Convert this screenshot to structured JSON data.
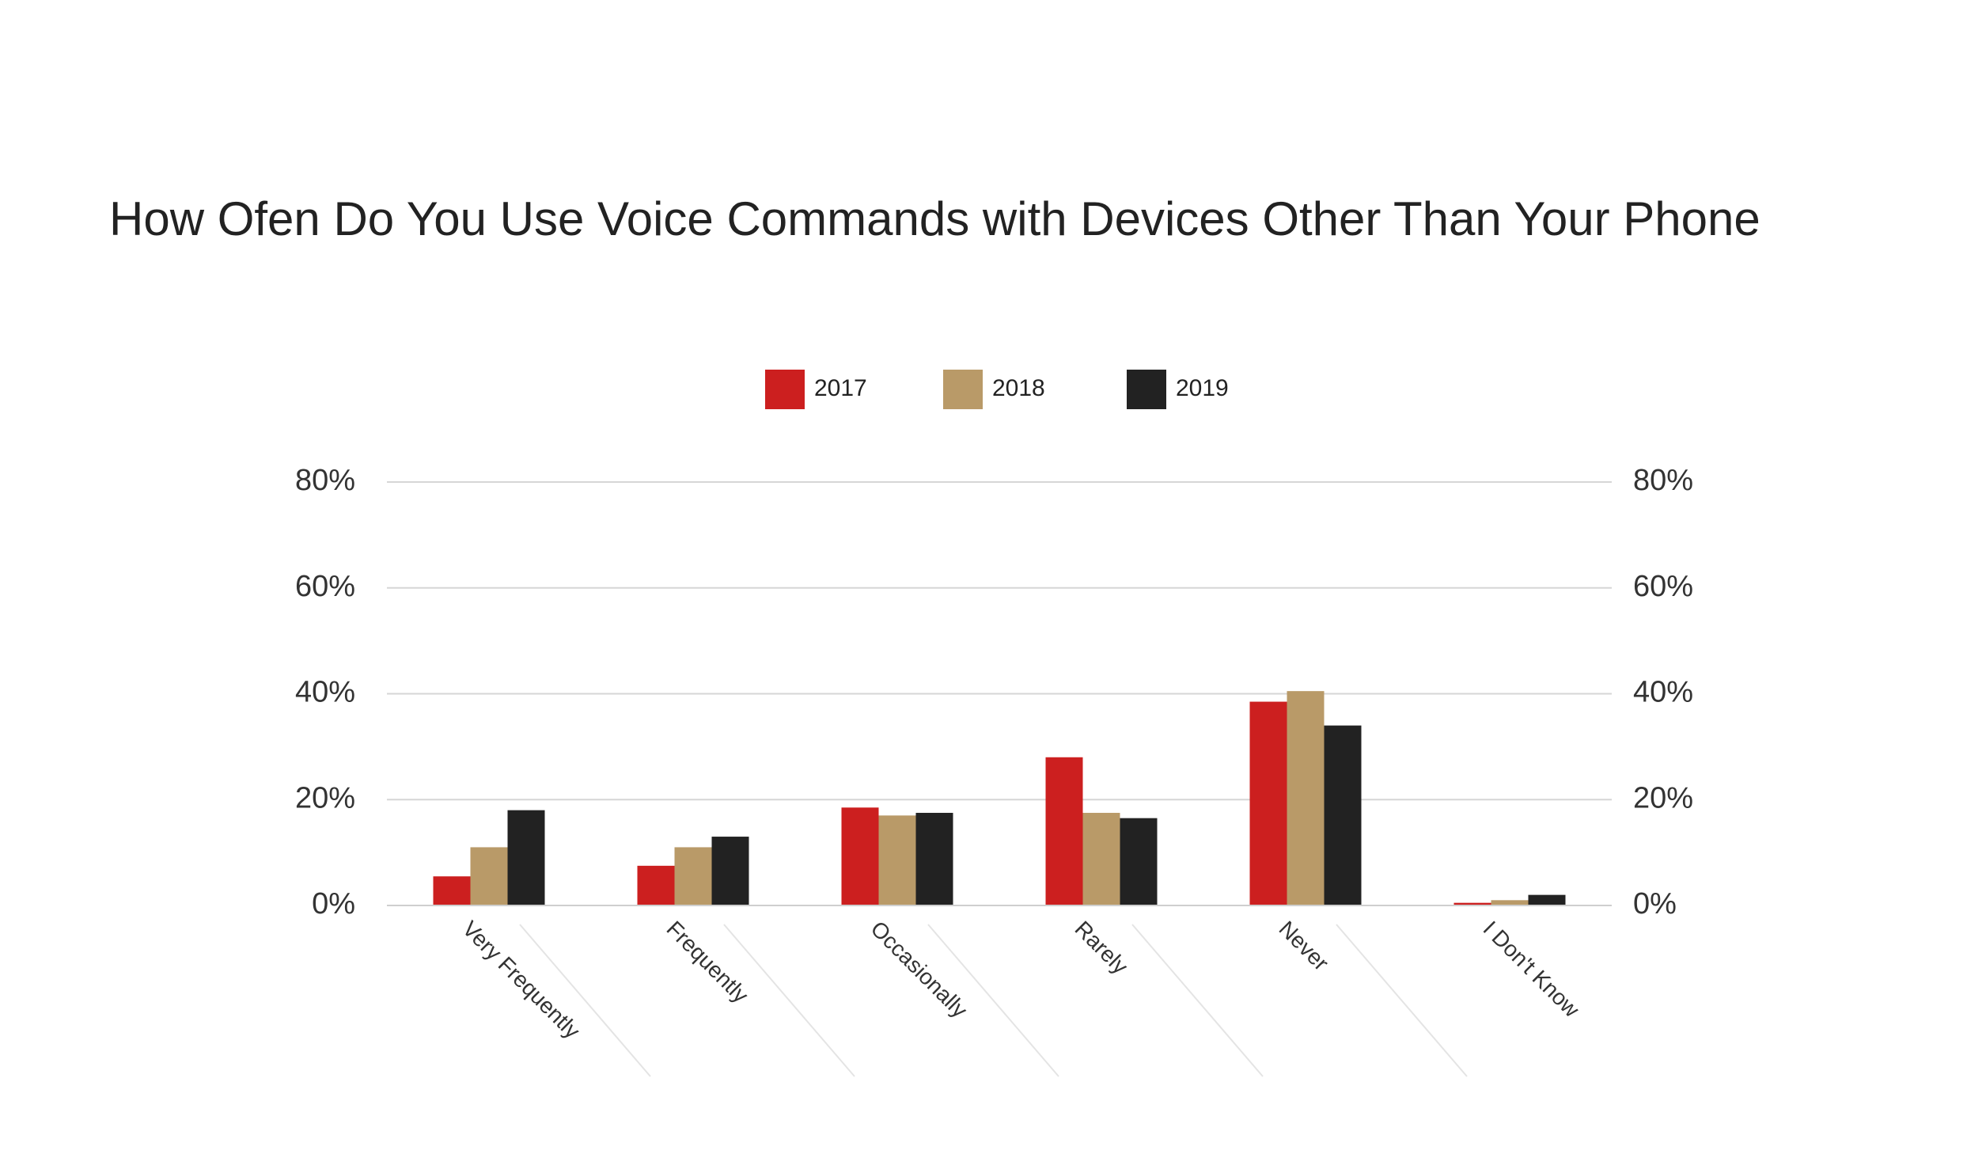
{
  "chart_data": {
    "type": "bar",
    "title": "How Ofen Do You Use Voice Commands with Devices Other Than Your Phone",
    "categories": [
      "Very Frequently",
      "Frequently",
      "Occasionally",
      "Rarely",
      "Never",
      "I Don't Know"
    ],
    "series": [
      {
        "name": "2017",
        "color": "#cc1f1f",
        "values": [
          5.5,
          7.5,
          18.5,
          28,
          38.5,
          0.5
        ]
      },
      {
        "name": "2018",
        "color": "#b99a68",
        "values": [
          11,
          11,
          17,
          17.5,
          40.5,
          1
        ]
      },
      {
        "name": "2019",
        "color": "#222222",
        "values": [
          18,
          13,
          17.5,
          16.5,
          34,
          2
        ]
      }
    ],
    "ylim": [
      0,
      80
    ],
    "yticks": [
      {
        "value": 0,
        "label": "0%"
      },
      {
        "value": 20,
        "label": "20%"
      },
      {
        "value": 40,
        "label": "40%"
      },
      {
        "value": 60,
        "label": "60%"
      },
      {
        "value": 80,
        "label": "80%"
      }
    ],
    "y2lim": [
      0,
      80
    ],
    "y2ticks": [
      {
        "value": 0,
        "label": "0%"
      },
      {
        "value": 20,
        "label": "20%"
      },
      {
        "value": 40,
        "label": "40%"
      },
      {
        "value": 60,
        "label": "60%"
      },
      {
        "value": 80,
        "label": "80%"
      }
    ],
    "grid": true
  }
}
